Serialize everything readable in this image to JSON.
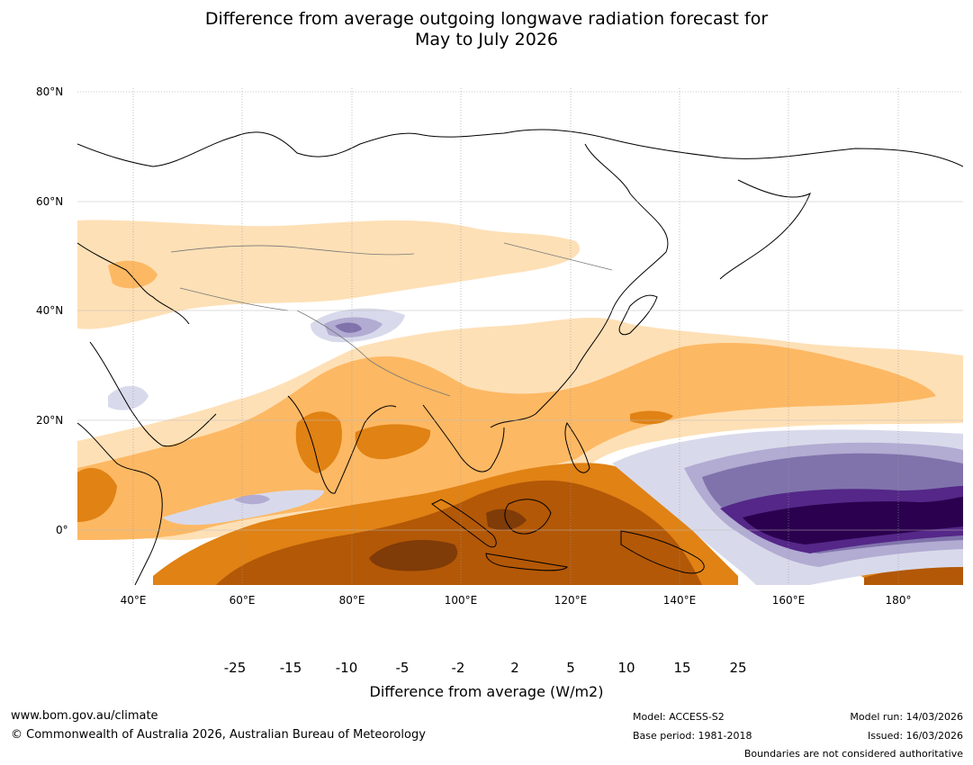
{
  "title": {
    "line1": "Difference from average outgoing longwave radiation forecast for",
    "line2": "May to July 2026"
  },
  "map": {
    "lat_labels": [
      "80°N",
      "60°N",
      "40°N",
      "20°N",
      "0°"
    ],
    "lon_labels": [
      "40°E",
      "60°E",
      "80°E",
      "100°E",
      "120°E",
      "140°E",
      "160°E",
      "180°"
    ]
  },
  "colorbar": {
    "colors": [
      "#2b004f",
      "#542788",
      "#8073ac",
      "#b2abd2",
      "#d8daeb",
      "#ffffff",
      "#fee0b6",
      "#fdb863",
      "#e08214",
      "#b35806",
      "#7f3b08"
    ],
    "ticks": [
      "-25",
      "-15",
      "-10",
      "-5",
      "-2",
      "2",
      "5",
      "10",
      "15",
      "25"
    ],
    "label": "Difference from average (W/m2)"
  },
  "footer": {
    "website": "www.bom.gov.au/climate",
    "copyright": "© Commonwealth of Australia 2026, Australian Bureau of Meteorology",
    "model": "Model: ACCESS-S2",
    "base_period": "Base period: 1981-2018",
    "model_run": "Model run: 14/03/2026",
    "issued": "Issued: 16/03/2026",
    "disclaimer": "Boundaries are not considered authoritative"
  }
}
